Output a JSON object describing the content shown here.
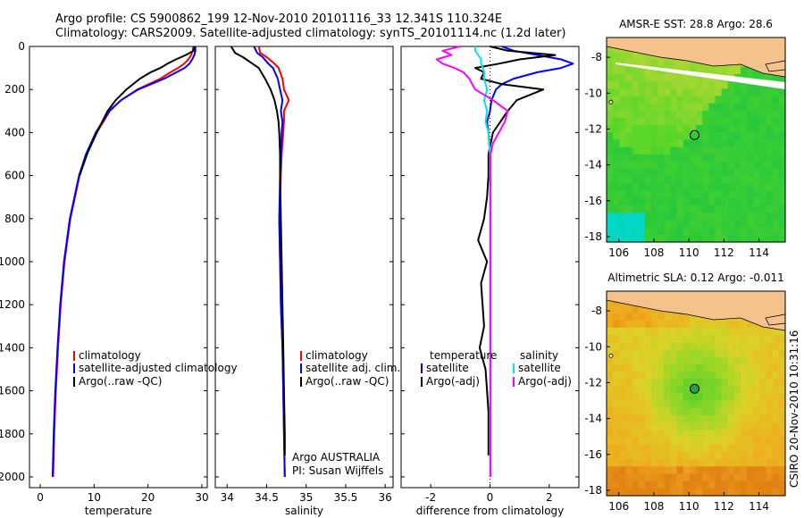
{
  "header": {
    "line1": "Argo profile: CS 5900862_199 12-Nov-2010 20101116_33 12.341S 110.324E",
    "line2": "Climatology: CARS2009. Satellite-adjusted climatology: synTS_20101114.nc (1.2d later)"
  },
  "footer": {
    "stamp": "CSIRO 20-Nov-2010 10:31:16"
  },
  "colors": {
    "red": "#ff0000",
    "blue": "#0000ff",
    "black": "#000000",
    "cyan": "#00e5e5",
    "magenta": "#ff00ff",
    "land": "#f5c28c"
  },
  "chart_data": [
    {
      "type": "line",
      "id": "temperature",
      "xlabel": "temperature",
      "ylabel": "depth",
      "xlim": [
        -2,
        31
      ],
      "ylim": [
        0,
        2050
      ],
      "y_reversed": true,
      "x_ticks": [
        "0",
        "10",
        "20",
        "30"
      ],
      "y_ticks": [
        "0",
        "200",
        "400",
        "600",
        "800",
        "1000",
        "1200",
        "1400",
        "1600",
        "1800",
        "2000"
      ],
      "legend": [
        "climatology",
        "satellite-adjusted climatology",
        "Argo(..raw -QC)"
      ],
      "series": [
        {
          "name": "climatology",
          "color": "red",
          "depth": [
            0,
            20,
            40,
            60,
            80,
            100,
            120,
            150,
            200,
            250,
            300,
            400,
            500,
            600,
            800,
            1000,
            1200,
            1400,
            1600,
            1800,
            2000
          ],
          "values": [
            28.4,
            28.3,
            28.0,
            27.5,
            26.7,
            25.6,
            24.2,
            22.3,
            18.0,
            15.0,
            12.9,
            10.5,
            8.6,
            7.3,
            5.6,
            4.5,
            3.8,
            3.3,
            2.9,
            2.6,
            2.4
          ]
        },
        {
          "name": "satellite-adjusted climatology",
          "color": "blue",
          "depth": [
            0,
            20,
            40,
            60,
            80,
            100,
            120,
            150,
            200,
            250,
            300,
            400,
            500,
            600,
            800,
            1000,
            1200,
            1400,
            1600,
            1800,
            2000
          ],
          "values": [
            28.8,
            28.8,
            28.6,
            28.2,
            27.7,
            26.8,
            25.3,
            23.0,
            18.2,
            15.0,
            12.8,
            10.3,
            8.5,
            7.2,
            5.5,
            4.4,
            3.7,
            3.2,
            2.8,
            2.5,
            2.3
          ]
        },
        {
          "name": "Argo(..raw -QC)",
          "color": "black",
          "depth": [
            0,
            20,
            40,
            60,
            80,
            100,
            120,
            150,
            200,
            250,
            300,
            400,
            500,
            600
          ],
          "values": [
            28.6,
            28.5,
            27.0,
            25.2,
            23.6,
            22.3,
            20.5,
            18.5,
            16.0,
            14.0,
            12.5,
            10.5,
            8.7,
            7.3
          ]
        }
      ]
    },
    {
      "type": "line",
      "id": "salinity",
      "xlabel": "salinity",
      "xlim": [
        33.85,
        36.1
      ],
      "ylim": [
        0,
        2050
      ],
      "y_reversed": true,
      "x_ticks": [
        "34",
        "34.5",
        "35",
        "35.5",
        "36"
      ],
      "legend": [
        "climatology",
        "satellite adj. clim.",
        "Argo(..raw -QC)"
      ],
      "series": [
        {
          "name": "climatology",
          "color": "red",
          "depth": [
            0,
            30,
            50,
            80,
            100,
            150,
            200,
            250,
            300,
            350,
            400,
            500,
            600,
            800,
            1000,
            1200,
            1400,
            1600,
            1800,
            2000
          ],
          "values": [
            34.4,
            34.42,
            34.5,
            34.6,
            34.65,
            34.7,
            34.72,
            34.78,
            34.72,
            34.72,
            34.71,
            34.69,
            34.68,
            34.66,
            34.67,
            34.68,
            34.7,
            34.71,
            34.72,
            34.73
          ]
        },
        {
          "name": "satellite adj. clim.",
          "color": "blue",
          "depth": [
            0,
            30,
            50,
            80,
            100,
            150,
            200,
            250,
            300,
            350,
            400,
            500,
            600,
            800,
            1000,
            1200,
            1400,
            1600,
            1800,
            2000
          ],
          "values": [
            34.34,
            34.38,
            34.45,
            34.52,
            34.58,
            34.64,
            34.67,
            34.7,
            34.68,
            34.7,
            34.69,
            34.68,
            34.67,
            34.66,
            34.67,
            34.68,
            34.7,
            34.71,
            34.72,
            34.73
          ]
        },
        {
          "name": "Argo(..raw -QC)",
          "color": "black",
          "depth": [
            0,
            30,
            50,
            80,
            100,
            150,
            200,
            250,
            300,
            350,
            400,
            500,
            600,
            800,
            1000,
            1200,
            1400,
            1600,
            1800,
            1900
          ],
          "values": [
            34.05,
            34.1,
            34.2,
            34.32,
            34.4,
            34.48,
            34.55,
            34.6,
            34.63,
            34.65,
            34.66,
            34.67,
            34.67,
            34.68,
            34.69,
            34.7,
            34.71,
            34.72,
            34.73,
            34.73
          ]
        }
      ],
      "annotations": [
        "Argo AUSTRALIA",
        "PI: Susan Wijffels"
      ]
    },
    {
      "type": "line",
      "id": "difference",
      "xlabel": "difference from climatology",
      "xlim": [
        -3,
        3
      ],
      "ylim": [
        0,
        2050
      ],
      "y_reversed": true,
      "x_ticks": [
        "-2",
        "0",
        "2"
      ],
      "legend_groups": [
        {
          "header": "temperature",
          "items": [
            "satellite",
            "Argo(-adj)"
          ]
        },
        {
          "header": "salinity",
          "items": [
            "satellite",
            "Argo(-adj)"
          ]
        }
      ],
      "series": [
        {
          "name": "temperature satellite",
          "color": "blue",
          "depth": [
            0,
            20,
            40,
            60,
            80,
            100,
            120,
            150,
            175,
            200,
            250,
            300,
            350,
            400,
            500,
            600,
            800,
            1000,
            1200,
            1400,
            1600,
            1800,
            2000
          ],
          "values": [
            0.4,
            0.8,
            1.6,
            2.4,
            2.8,
            2.4,
            1.6,
            0.8,
            0.4,
            0.2,
            0.05,
            0,
            -0.1,
            -0.05,
            0,
            0,
            0,
            0,
            0,
            0,
            0,
            0,
            0
          ]
        },
        {
          "name": "temperature Argo(-adj)",
          "color": "black",
          "depth": [
            0,
            20,
            40,
            60,
            80,
            100,
            120,
            150,
            175,
            200,
            250,
            300,
            400,
            500,
            600,
            700,
            800,
            900,
            1000,
            1100,
            1200,
            1300,
            1400,
            1500,
            1600,
            1700,
            1800,
            1900
          ],
          "values": [
            0,
            0.6,
            2.2,
            1.0,
            0.3,
            -0.5,
            -0.2,
            -0.3,
            0.4,
            1.8,
            0.9,
            0.6,
            0.1,
            -0.05,
            -0.05,
            -0.1,
            -0.2,
            -0.4,
            -0.1,
            -0.3,
            -0.25,
            -0.2,
            -0.35,
            -0.15,
            -0.1,
            -0.05,
            -0.05,
            -0.05
          ]
        },
        {
          "name": "salinity satellite",
          "color": "cyan",
          "depth": [
            0,
            20,
            40,
            60,
            80,
            100,
            120,
            150,
            200,
            250,
            300,
            350,
            400,
            500,
            600,
            800,
            1000,
            1200,
            1400,
            1600,
            1800,
            2000
          ],
          "values": [
            -0.5,
            -0.5,
            -0.4,
            -0.3,
            -0.3,
            -0.25,
            -0.2,
            -0.2,
            -0.1,
            -0.2,
            -0.1,
            -0.15,
            -0.05,
            0,
            0,
            0,
            0,
            0,
            0,
            0,
            0,
            0
          ]
        },
        {
          "name": "salinity Argo(-adj)",
          "color": "magenta",
          "depth": [
            0,
            20,
            40,
            60,
            80,
            100,
            120,
            150,
            200,
            250,
            300,
            350,
            400,
            450,
            500,
            600,
            700,
            800,
            1000,
            1200,
            1400,
            1600,
            1800,
            2000
          ],
          "values": [
            -1.0,
            -1.6,
            -1.3,
            -1.8,
            -1.6,
            -1.2,
            -0.9,
            -0.7,
            -0.5,
            0.1,
            0.6,
            0.5,
            0.3,
            0.1,
            0.02,
            0.02,
            0.02,
            0.02,
            0.02,
            0.02,
            0.02,
            0.02,
            0.02,
            0.02
          ]
        }
      ]
    },
    {
      "type": "heatmap",
      "id": "sst-map",
      "title": "AMSR-E SST: 28.8 Argo: 28.6",
      "xlim": [
        105.3,
        115.5
      ],
      "ylim": [
        -18.3,
        -6.9
      ],
      "x_ticks": [
        "106",
        "108",
        "110",
        "112",
        "114"
      ],
      "y_ticks": [
        "-8",
        "-10",
        "-12",
        "-14",
        "-16",
        "-18"
      ],
      "argo_position": {
        "lon": 110.324,
        "lat": -12.341
      }
    },
    {
      "type": "heatmap",
      "id": "sla-map",
      "title": "Altimetric SLA: 0.12 Argo: -0.011",
      "xlim": [
        105.3,
        115.5
      ],
      "ylim": [
        -18.3,
        -6.9
      ],
      "x_ticks": [
        "106",
        "108",
        "110",
        "112",
        "114"
      ],
      "y_ticks": [
        "-8",
        "-10",
        "-12",
        "-14",
        "-16",
        "-18"
      ],
      "argo_position": {
        "lon": 110.324,
        "lat": -12.341
      }
    }
  ]
}
